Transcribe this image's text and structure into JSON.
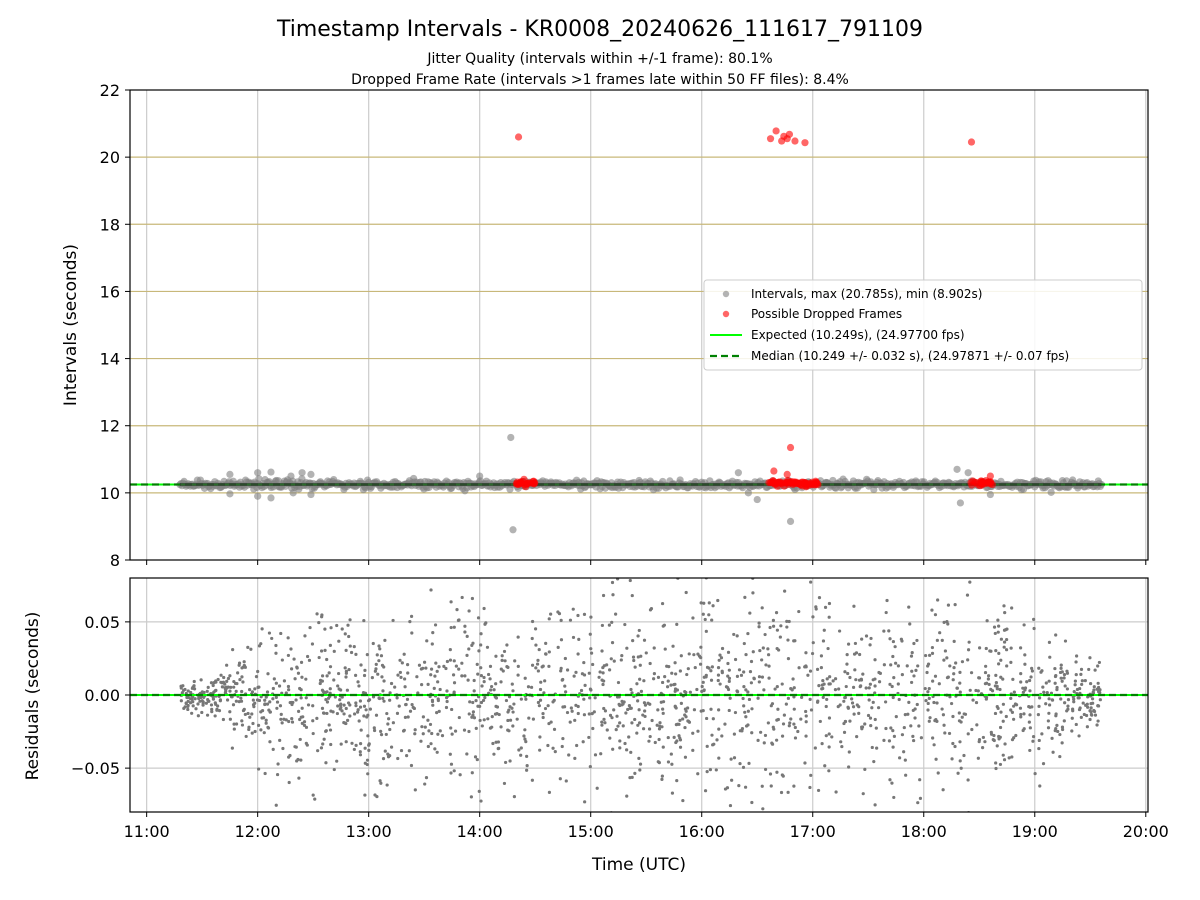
{
  "chart_data": [
    {
      "type": "scatter",
      "title": "Timestamp Intervals - KR0008_20240626_111617_791109",
      "subtitle_lines": [
        "Jitter Quality (intervals within +/-1 frame): 80.1%",
        "Dropped Frame Rate (intervals >1 frames late within 50 FF files): 8.4%"
      ],
      "xlabel": "",
      "ylabel": "Intervals (seconds)",
      "x_unit": "hours (UTC)",
      "xlim": [
        10.85,
        20.02
      ],
      "ylim": [
        8,
        22
      ],
      "yticks": [
        8,
        10,
        12,
        14,
        16,
        18,
        20,
        22
      ],
      "ytick_labels": [
        "8",
        "10",
        "12",
        "14",
        "16",
        "18",
        "20",
        "22"
      ],
      "grid": true,
      "horizontal_grid_color": "#c8b87a",
      "legend_position": "center-right",
      "legend": [
        "Intervals, max (20.785s), min (8.902s)",
        "Possible Dropped Frames",
        "Expected (10.249s), (24.97700 fps)",
        "Median (10.249 +/- 0.032 s), (24.97871 +/- 0.07 fps)"
      ],
      "series": [
        {
          "name": "Intervals, max (20.785s), min (8.902s)",
          "color": "#808080",
          "outliers": [
            {
              "x": 11.75,
              "y": 10.55
            },
            {
              "x": 11.75,
              "y": 9.97
            },
            {
              "x": 12.0,
              "y": 10.6
            },
            {
              "x": 12.0,
              "y": 9.9
            },
            {
              "x": 12.12,
              "y": 10.62
            },
            {
              "x": 12.12,
              "y": 9.85
            },
            {
              "x": 12.3,
              "y": 10.5
            },
            {
              "x": 12.32,
              "y": 10.0
            },
            {
              "x": 12.4,
              "y": 10.6
            },
            {
              "x": 12.48,
              "y": 10.55
            },
            {
              "x": 12.48,
              "y": 9.95
            },
            {
              "x": 14.0,
              "y": 10.5
            },
            {
              "x": 14.28,
              "y": 11.65
            },
            {
              "x": 14.3,
              "y": 8.9
            },
            {
              "x": 16.33,
              "y": 10.6
            },
            {
              "x": 16.42,
              "y": 10.0
            },
            {
              "x": 16.5,
              "y": 9.8
            },
            {
              "x": 16.78,
              "y": 10.35
            },
            {
              "x": 16.8,
              "y": 9.15
            },
            {
              "x": 18.3,
              "y": 10.7
            },
            {
              "x": 18.33,
              "y": 9.7
            },
            {
              "x": 18.4,
              "y": 10.6
            },
            {
              "x": 18.6,
              "y": 9.95
            }
          ],
          "band": {
            "x_start": 11.3,
            "x_end": 19.6,
            "y_center": 10.249,
            "y_spread": 0.12
          }
        },
        {
          "name": "Possible Dropped Frames",
          "color": "#ff0000",
          "points": [
            {
              "x": 14.35,
              "y": 20.6
            },
            {
              "x": 16.62,
              "y": 20.55
            },
            {
              "x": 16.67,
              "y": 20.78
            },
            {
              "x": 16.72,
              "y": 20.48
            },
            {
              "x": 16.74,
              "y": 20.62
            },
            {
              "x": 16.77,
              "y": 20.55
            },
            {
              "x": 16.79,
              "y": 20.68
            },
            {
              "x": 16.84,
              "y": 20.48
            },
            {
              "x": 16.93,
              "y": 20.43
            },
            {
              "x": 18.43,
              "y": 20.45
            },
            {
              "x": 16.8,
              "y": 11.35
            },
            {
              "x": 16.65,
              "y": 10.65
            },
            {
              "x": 16.77,
              "y": 10.55
            },
            {
              "x": 18.6,
              "y": 10.5
            }
          ],
          "clusters": [
            {
              "x_start": 14.33,
              "x_end": 14.5,
              "y": 10.28
            },
            {
              "x_start": 16.6,
              "x_end": 17.05,
              "y": 10.28
            },
            {
              "x_start": 18.42,
              "x_end": 18.62,
              "y": 10.28
            }
          ]
        },
        {
          "name": "Expected (10.249s), (24.97700 fps)",
          "type": "hline",
          "y": 10.249,
          "color": "#00ff00"
        },
        {
          "name": "Median (10.249 +/- 0.032 s), (24.97871 +/- 0.07 fps)",
          "type": "hline",
          "y": 10.249,
          "color": "#008000",
          "style": "dashed"
        }
      ]
    },
    {
      "type": "scatter",
      "title": "",
      "xlabel": "Time (UTC)",
      "ylabel": "Residuals (seconds)",
      "x_unit": "hours (UTC)",
      "xlim": [
        10.85,
        20.02
      ],
      "ylim": [
        -0.08,
        0.08
      ],
      "xticks": [
        11,
        12,
        13,
        14,
        15,
        16,
        17,
        18,
        19,
        20
      ],
      "xtick_labels": [
        "11:00",
        "12:00",
        "13:00",
        "14:00",
        "15:00",
        "16:00",
        "17:00",
        "18:00",
        "19:00",
        "20:00"
      ],
      "yticks": [
        -0.05,
        0.0,
        0.05
      ],
      "ytick_labels": [
        "−0.05",
        "0.00",
        "0.05"
      ],
      "grid": true,
      "series": [
        {
          "name": "",
          "color": "#777777",
          "scatter": {
            "x_start": 11.3,
            "x_end": 19.6,
            "count": 1900
          },
          "amplitude_profile": [
            {
              "x": 11.3,
              "amp": 0.012
            },
            {
              "x": 11.65,
              "amp": 0.016
            },
            {
              "x": 11.8,
              "amp": 0.04
            },
            {
              "x": 12.2,
              "amp": 0.06
            },
            {
              "x": 13.0,
              "amp": 0.07
            },
            {
              "x": 15.0,
              "amp": 0.08
            },
            {
              "x": 18.0,
              "amp": 0.085
            },
            {
              "x": 19.0,
              "amp": 0.07
            },
            {
              "x": 19.35,
              "amp": 0.04
            },
            {
              "x": 19.6,
              "amp": 0.02
            }
          ]
        },
        {
          "name": "",
          "type": "hline",
          "y": 0.0,
          "color": "#00ff00"
        },
        {
          "name": "",
          "type": "hline",
          "y": 0.0,
          "color": "#008000",
          "style": "dashed"
        }
      ]
    }
  ]
}
